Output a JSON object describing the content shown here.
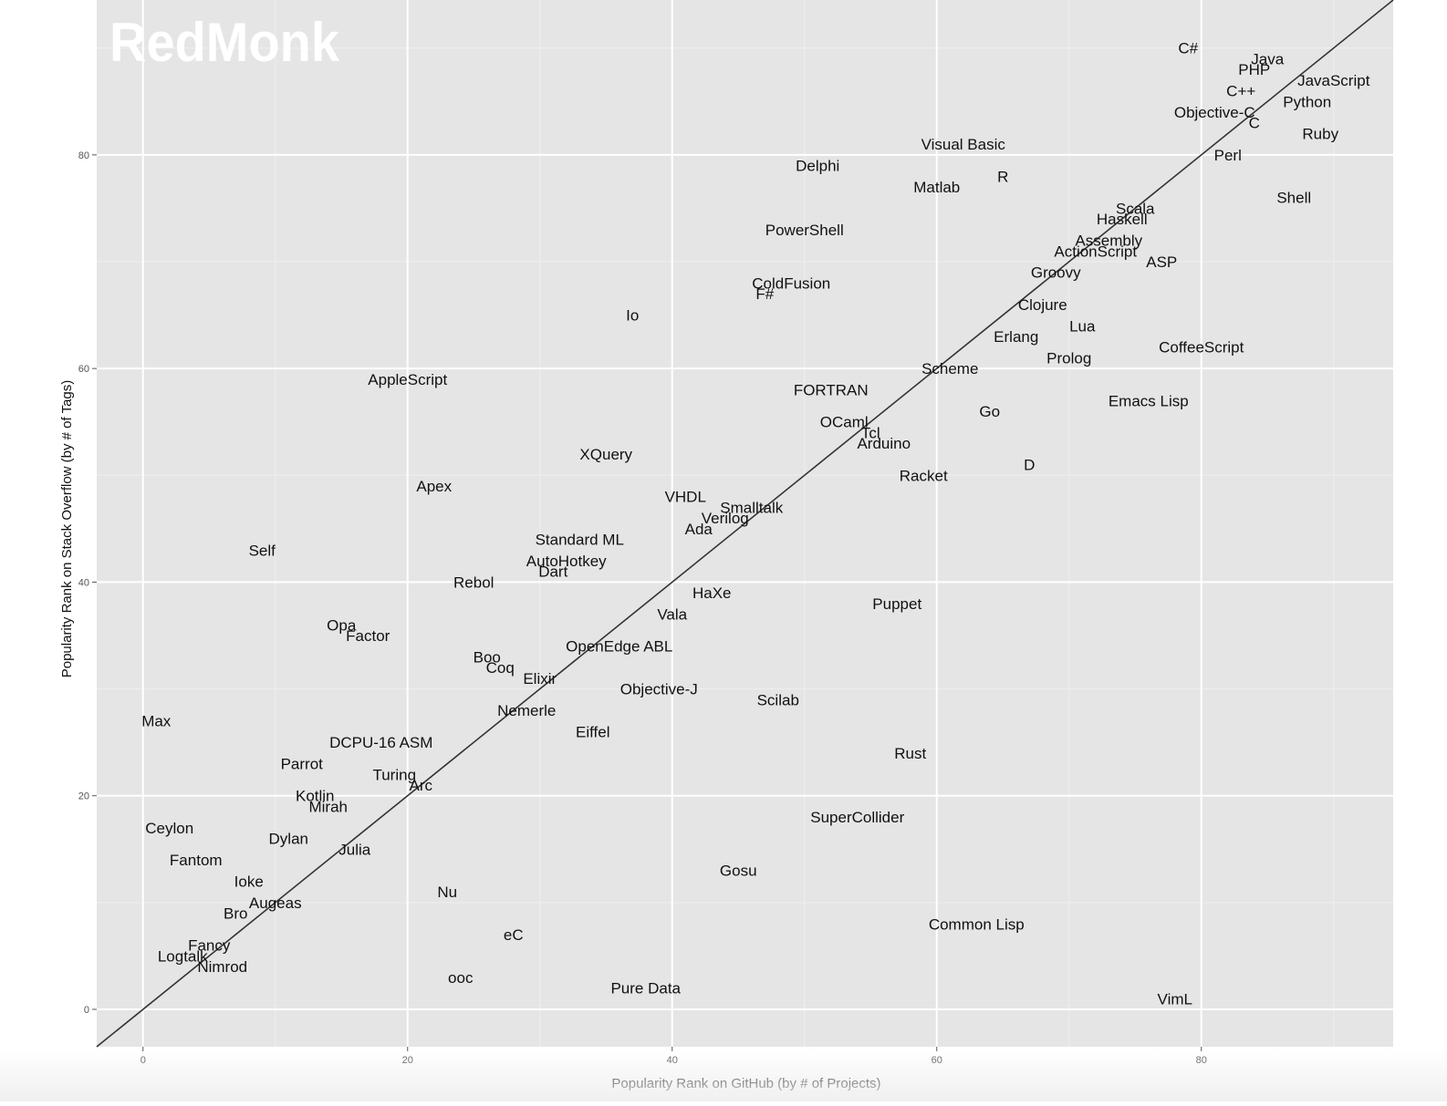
{
  "watermark": "RedMonk",
  "chart_data": {
    "type": "scatter",
    "xlabel": "Popularity Rank on GitHub (by # of Projects)",
    "ylabel": "Popularity Rank on Stack Overflow (by # of Tags)",
    "xlim": [
      -3.5,
      94.5
    ],
    "ylim": [
      -3.5,
      94.5
    ],
    "x_ticks": [
      0,
      20,
      40,
      60,
      80
    ],
    "y_ticks": [
      0,
      20,
      40,
      60,
      80
    ],
    "grid": true,
    "reference_line": {
      "slope": 1,
      "intercept": 0
    },
    "colors": {
      "panel": "#e5e5e5",
      "grid_major": "#ffffff",
      "grid_minor": "#efefef",
      "line": "#333333",
      "label": "#111111",
      "axis_text": "#555555"
    },
    "points": [
      {
        "label": "C#",
        "x": 79,
        "y": 90
      },
      {
        "label": "Java",
        "x": 85,
        "y": 89
      },
      {
        "label": "PHP",
        "x": 84,
        "y": 88
      },
      {
        "label": "JavaScript",
        "x": 90,
        "y": 87
      },
      {
        "label": "C++",
        "x": 83,
        "y": 86
      },
      {
        "label": "Python",
        "x": 88,
        "y": 85
      },
      {
        "label": "Objective-C",
        "x": 81,
        "y": 84
      },
      {
        "label": "C",
        "x": 84,
        "y": 83
      },
      {
        "label": "Ruby",
        "x": 89,
        "y": 82
      },
      {
        "label": "Perl",
        "x": 82,
        "y": 80
      },
      {
        "label": "Visual Basic",
        "x": 62,
        "y": 81
      },
      {
        "label": "Delphi",
        "x": 51,
        "y": 79
      },
      {
        "label": "R",
        "x": 65,
        "y": 78
      },
      {
        "label": "Matlab",
        "x": 60,
        "y": 77
      },
      {
        "label": "Shell",
        "x": 87,
        "y": 76
      },
      {
        "label": "Scala",
        "x": 75,
        "y": 75
      },
      {
        "label": "Haskell",
        "x": 74,
        "y": 74
      },
      {
        "label": "PowerShell",
        "x": 50,
        "y": 73
      },
      {
        "label": "Assembly",
        "x": 73,
        "y": 72
      },
      {
        "label": "ActionScript",
        "x": 72,
        "y": 71
      },
      {
        "label": "ASP",
        "x": 77,
        "y": 70
      },
      {
        "label": "Groovy",
        "x": 69,
        "y": 69
      },
      {
        "label": "ColdFusion",
        "x": 49,
        "y": 68
      },
      {
        "label": "F#",
        "x": 47,
        "y": 67
      },
      {
        "label": "Clojure",
        "x": 68,
        "y": 66
      },
      {
        "label": "Io",
        "x": 37,
        "y": 65
      },
      {
        "label": "Lua",
        "x": 71,
        "y": 64
      },
      {
        "label": "Erlang",
        "x": 66,
        "y": 63
      },
      {
        "label": "CoffeeScript",
        "x": 80,
        "y": 62
      },
      {
        "label": "Prolog",
        "x": 70,
        "y": 61
      },
      {
        "label": "Scheme",
        "x": 61,
        "y": 60
      },
      {
        "label": "AppleScript",
        "x": 20,
        "y": 59
      },
      {
        "label": "FORTRAN",
        "x": 52,
        "y": 58
      },
      {
        "label": "Emacs Lisp",
        "x": 76,
        "y": 57
      },
      {
        "label": "Go",
        "x": 64,
        "y": 56
      },
      {
        "label": "OCaml",
        "x": 53,
        "y": 55
      },
      {
        "label": "Tcl",
        "x": 55,
        "y": 54
      },
      {
        "label": "Arduino",
        "x": 56,
        "y": 53
      },
      {
        "label": "XQuery",
        "x": 35,
        "y": 52
      },
      {
        "label": "D",
        "x": 67,
        "y": 51
      },
      {
        "label": "Racket",
        "x": 59,
        "y": 50
      },
      {
        "label": "Apex",
        "x": 22,
        "y": 49
      },
      {
        "label": "VHDL",
        "x": 41,
        "y": 48
      },
      {
        "label": "Smalltalk",
        "x": 46,
        "y": 47
      },
      {
        "label": "Verilog",
        "x": 44,
        "y": 46
      },
      {
        "label": "Ada",
        "x": 42,
        "y": 45
      },
      {
        "label": "Standard ML",
        "x": 33,
        "y": 44
      },
      {
        "label": "Self",
        "x": 9,
        "y": 43
      },
      {
        "label": "AutoHotkey",
        "x": 32,
        "y": 42
      },
      {
        "label": "Dart",
        "x": 31,
        "y": 41
      },
      {
        "label": "Rebol",
        "x": 25,
        "y": 40
      },
      {
        "label": "HaXe",
        "x": 43,
        "y": 39
      },
      {
        "label": "Puppet",
        "x": 57,
        "y": 38
      },
      {
        "label": "Vala",
        "x": 40,
        "y": 37
      },
      {
        "label": "Opa",
        "x": 15,
        "y": 36
      },
      {
        "label": "Factor",
        "x": 17,
        "y": 35
      },
      {
        "label": "OpenEdge ABL",
        "x": 36,
        "y": 34
      },
      {
        "label": "Boo",
        "x": 26,
        "y": 33
      },
      {
        "label": "Coq",
        "x": 27,
        "y": 32
      },
      {
        "label": "Elixir",
        "x": 30,
        "y": 31
      },
      {
        "label": "Objective-J",
        "x": 39,
        "y": 30
      },
      {
        "label": "Scilab",
        "x": 48,
        "y": 29
      },
      {
        "label": "Nemerle",
        "x": 29,
        "y": 28
      },
      {
        "label": "Max",
        "x": 1,
        "y": 27
      },
      {
        "label": "Eiffel",
        "x": 34,
        "y": 26
      },
      {
        "label": "DCPU-16 ASM",
        "x": 18,
        "y": 25
      },
      {
        "label": "Rust",
        "x": 58,
        "y": 24
      },
      {
        "label": "Parrot",
        "x": 12,
        "y": 23
      },
      {
        "label": "Turing",
        "x": 19,
        "y": 22
      },
      {
        "label": "Arc",
        "x": 21,
        "y": 21
      },
      {
        "label": "Kotlin",
        "x": 13,
        "y": 20
      },
      {
        "label": "Mirah",
        "x": 14,
        "y": 19
      },
      {
        "label": "SuperCollider",
        "x": 54,
        "y": 18
      },
      {
        "label": "Ceylon",
        "x": 2,
        "y": 17
      },
      {
        "label": "Dylan",
        "x": 11,
        "y": 16
      },
      {
        "label": "Julia",
        "x": 16,
        "y": 15
      },
      {
        "label": "Fantom",
        "x": 4,
        "y": 14
      },
      {
        "label": "Gosu",
        "x": 45,
        "y": 13
      },
      {
        "label": "Ioke",
        "x": 8,
        "y": 12
      },
      {
        "label": "Nu",
        "x": 23,
        "y": 11
      },
      {
        "label": "Augeas",
        "x": 10,
        "y": 10
      },
      {
        "label": "Bro",
        "x": 7,
        "y": 9
      },
      {
        "label": "Common Lisp",
        "x": 63,
        "y": 8
      },
      {
        "label": "eC",
        "x": 28,
        "y": 7
      },
      {
        "label": "Fancy",
        "x": 5,
        "y": 6
      },
      {
        "label": "Logtalk",
        "x": 3,
        "y": 5
      },
      {
        "label": "Nimrod",
        "x": 6,
        "y": 4
      },
      {
        "label": "ooc",
        "x": 24,
        "y": 3
      },
      {
        "label": "Pure Data",
        "x": 38,
        "y": 2
      },
      {
        "label": "VimL",
        "x": 78,
        "y": 1
      }
    ]
  }
}
